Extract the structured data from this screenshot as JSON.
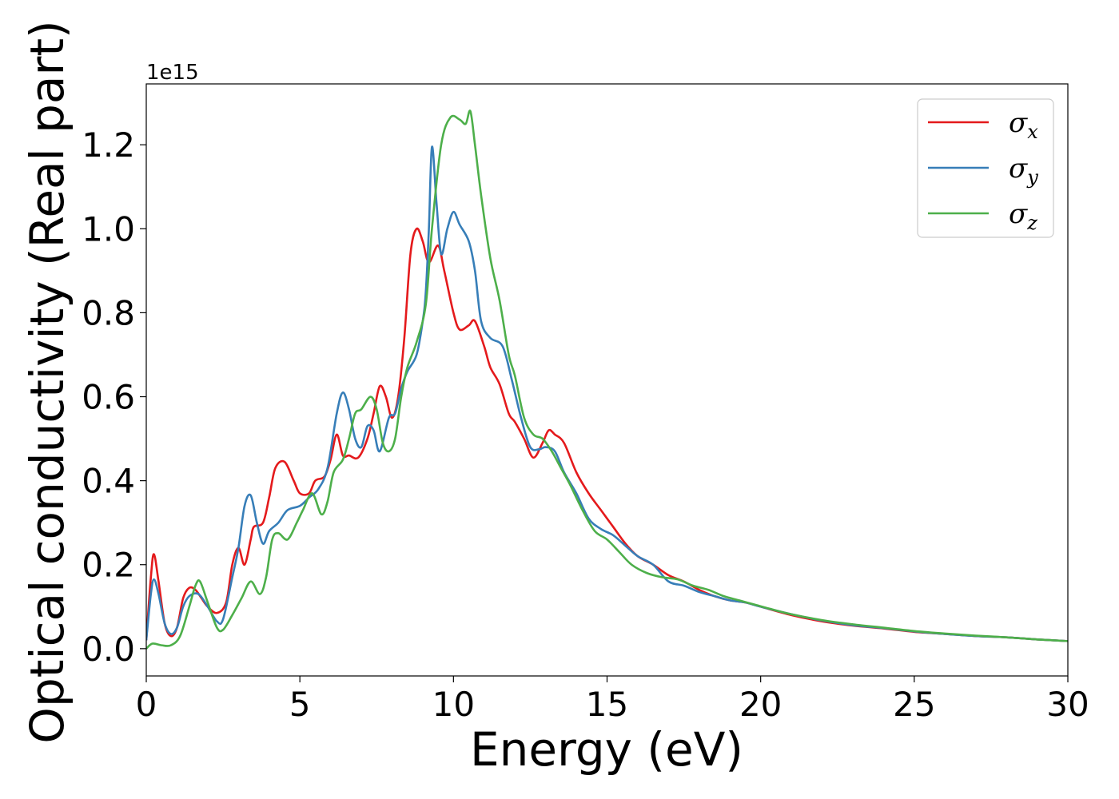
{
  "chart_data": {
    "type": "line",
    "title": "",
    "xlabel": "Energy (eV)",
    "ylabel": "Optical conductivity (Real part)",
    "y_offset_label": "1e15",
    "xlim": [
      0,
      30
    ],
    "ylim": [
      -0.065,
      1.345
    ],
    "x_ticks": [
      0,
      5,
      10,
      15,
      20,
      25,
      30
    ],
    "y_ticks": [
      0.0,
      0.2,
      0.4,
      0.6,
      0.8,
      1.0,
      1.2
    ],
    "x_tick_labels": [
      "0",
      "5",
      "10",
      "15",
      "20",
      "25",
      "30"
    ],
    "y_tick_labels": [
      "0.0",
      "0.2",
      "0.4",
      "0.6",
      "0.8",
      "1.0",
      "1.2"
    ],
    "grid": false,
    "legend_position": "top-right",
    "series": [
      {
        "name": "σx",
        "legend_main": "σ",
        "legend_sub": "x",
        "color": "#e41a1c",
        "points": [
          [
            0,
            0.02
          ],
          [
            0.15,
            0.17
          ],
          [
            0.25,
            0.225
          ],
          [
            0.4,
            0.16
          ],
          [
            0.6,
            0.06
          ],
          [
            0.8,
            0.03
          ],
          [
            1.0,
            0.05
          ],
          [
            1.2,
            0.12
          ],
          [
            1.4,
            0.145
          ],
          [
            1.6,
            0.14
          ],
          [
            1.8,
            0.12
          ],
          [
            2.0,
            0.1
          ],
          [
            2.3,
            0.085
          ],
          [
            2.6,
            0.11
          ],
          [
            2.8,
            0.2
          ],
          [
            3.0,
            0.24
          ],
          [
            3.2,
            0.2
          ],
          [
            3.4,
            0.26
          ],
          [
            3.5,
            0.29
          ],
          [
            3.8,
            0.3
          ],
          [
            4.0,
            0.36
          ],
          [
            4.2,
            0.43
          ],
          [
            4.5,
            0.445
          ],
          [
            4.8,
            0.4
          ],
          [
            5.0,
            0.37
          ],
          [
            5.3,
            0.37
          ],
          [
            5.5,
            0.4
          ],
          [
            5.8,
            0.41
          ],
          [
            6.0,
            0.45
          ],
          [
            6.2,
            0.51
          ],
          [
            6.4,
            0.46
          ],
          [
            6.6,
            0.46
          ],
          [
            6.9,
            0.455
          ],
          [
            7.2,
            0.5
          ],
          [
            7.4,
            0.56
          ],
          [
            7.6,
            0.625
          ],
          [
            7.8,
            0.6
          ],
          [
            8.0,
            0.55
          ],
          [
            8.2,
            0.6
          ],
          [
            8.4,
            0.74
          ],
          [
            8.6,
            0.94
          ],
          [
            8.8,
            1.0
          ],
          [
            9.0,
            0.97
          ],
          [
            9.2,
            0.92
          ],
          [
            9.5,
            0.96
          ],
          [
            9.7,
            0.9
          ],
          [
            10.0,
            0.8
          ],
          [
            10.2,
            0.76
          ],
          [
            10.5,
            0.77
          ],
          [
            10.7,
            0.78
          ],
          [
            11.0,
            0.72
          ],
          [
            11.2,
            0.67
          ],
          [
            11.5,
            0.63
          ],
          [
            11.8,
            0.56
          ],
          [
            12.0,
            0.54
          ],
          [
            12.3,
            0.5
          ],
          [
            12.6,
            0.455
          ],
          [
            12.9,
            0.49
          ],
          [
            13.1,
            0.52
          ],
          [
            13.3,
            0.51
          ],
          [
            13.6,
            0.49
          ],
          [
            14.0,
            0.42
          ],
          [
            14.4,
            0.37
          ],
          [
            14.8,
            0.33
          ],
          [
            15.2,
            0.29
          ],
          [
            15.6,
            0.25
          ],
          [
            16.0,
            0.22
          ],
          [
            16.5,
            0.2
          ],
          [
            17.0,
            0.175
          ],
          [
            17.5,
            0.16
          ],
          [
            18.0,
            0.14
          ],
          [
            18.5,
            0.125
          ],
          [
            19.0,
            0.115
          ],
          [
            19.5,
            0.11
          ],
          [
            20.0,
            0.1
          ],
          [
            21.0,
            0.08
          ],
          [
            22.0,
            0.065
          ],
          [
            23.0,
            0.055
          ],
          [
            24.0,
            0.048
          ],
          [
            25.0,
            0.04
          ],
          [
            26.0,
            0.035
          ],
          [
            27.0,
            0.03
          ],
          [
            28.0,
            0.027
          ],
          [
            29.0,
            0.022
          ],
          [
            30.0,
            0.018
          ]
        ]
      },
      {
        "name": "σy",
        "legend_main": "σ",
        "legend_sub": "y",
        "color": "#377eb8",
        "points": [
          [
            0,
            0.02
          ],
          [
            0.15,
            0.13
          ],
          [
            0.25,
            0.165
          ],
          [
            0.4,
            0.13
          ],
          [
            0.6,
            0.06
          ],
          [
            0.8,
            0.035
          ],
          [
            1.0,
            0.05
          ],
          [
            1.2,
            0.1
          ],
          [
            1.4,
            0.125
          ],
          [
            1.7,
            0.13
          ],
          [
            2.0,
            0.1
          ],
          [
            2.3,
            0.065
          ],
          [
            2.5,
            0.07
          ],
          [
            2.8,
            0.17
          ],
          [
            3.0,
            0.24
          ],
          [
            3.2,
            0.34
          ],
          [
            3.4,
            0.365
          ],
          [
            3.6,
            0.3
          ],
          [
            3.8,
            0.25
          ],
          [
            4.0,
            0.28
          ],
          [
            4.3,
            0.3
          ],
          [
            4.6,
            0.33
          ],
          [
            5.0,
            0.34
          ],
          [
            5.3,
            0.36
          ],
          [
            5.6,
            0.38
          ],
          [
            5.9,
            0.43
          ],
          [
            6.2,
            0.56
          ],
          [
            6.4,
            0.61
          ],
          [
            6.6,
            0.57
          ],
          [
            6.8,
            0.5
          ],
          [
            7.0,
            0.48
          ],
          [
            7.2,
            0.53
          ],
          [
            7.4,
            0.52
          ],
          [
            7.6,
            0.47
          ],
          [
            7.9,
            0.55
          ],
          [
            8.1,
            0.56
          ],
          [
            8.3,
            0.62
          ],
          [
            8.5,
            0.66
          ],
          [
            8.8,
            0.7
          ],
          [
            9.0,
            0.78
          ],
          [
            9.1,
            0.85
          ],
          [
            9.2,
            1.0
          ],
          [
            9.3,
            1.195
          ],
          [
            9.45,
            1.06
          ],
          [
            9.6,
            0.94
          ],
          [
            9.8,
            1.0
          ],
          [
            10.0,
            1.04
          ],
          [
            10.2,
            1.01
          ],
          [
            10.5,
            0.97
          ],
          [
            10.7,
            0.9
          ],
          [
            10.9,
            0.78
          ],
          [
            11.2,
            0.74
          ],
          [
            11.6,
            0.72
          ],
          [
            11.9,
            0.64
          ],
          [
            12.2,
            0.55
          ],
          [
            12.5,
            0.48
          ],
          [
            12.8,
            0.475
          ],
          [
            13.0,
            0.48
          ],
          [
            13.3,
            0.47
          ],
          [
            13.6,
            0.42
          ],
          [
            14.0,
            0.37
          ],
          [
            14.4,
            0.31
          ],
          [
            14.8,
            0.285
          ],
          [
            15.2,
            0.27
          ],
          [
            15.6,
            0.245
          ],
          [
            16.0,
            0.22
          ],
          [
            16.5,
            0.2
          ],
          [
            17.0,
            0.16
          ],
          [
            17.5,
            0.15
          ],
          [
            18.0,
            0.135
          ],
          [
            18.5,
            0.125
          ],
          [
            19.0,
            0.115
          ],
          [
            19.5,
            0.11
          ],
          [
            20.0,
            0.1
          ],
          [
            21.0,
            0.082
          ],
          [
            22.0,
            0.067
          ],
          [
            23.0,
            0.056
          ],
          [
            24.0,
            0.049
          ],
          [
            25.0,
            0.041
          ],
          [
            26.0,
            0.035
          ],
          [
            27.0,
            0.03
          ],
          [
            28.0,
            0.027
          ],
          [
            29.0,
            0.022
          ],
          [
            30.0,
            0.018
          ]
        ]
      },
      {
        "name": "σz",
        "legend_main": "σ",
        "legend_sub": "z",
        "color": "#4daf4a",
        "points": [
          [
            0,
            0.0
          ],
          [
            0.2,
            0.012
          ],
          [
            0.5,
            0.008
          ],
          [
            0.8,
            0.008
          ],
          [
            1.1,
            0.03
          ],
          [
            1.4,
            0.1
          ],
          [
            1.6,
            0.15
          ],
          [
            1.75,
            0.16
          ],
          [
            2.0,
            0.11
          ],
          [
            2.3,
            0.05
          ],
          [
            2.5,
            0.045
          ],
          [
            2.8,
            0.08
          ],
          [
            3.1,
            0.12
          ],
          [
            3.4,
            0.16
          ],
          [
            3.7,
            0.13
          ],
          [
            3.9,
            0.17
          ],
          [
            4.1,
            0.26
          ],
          [
            4.3,
            0.275
          ],
          [
            4.6,
            0.26
          ],
          [
            4.9,
            0.3
          ],
          [
            5.1,
            0.33
          ],
          [
            5.4,
            0.37
          ],
          [
            5.7,
            0.32
          ],
          [
            5.9,
            0.35
          ],
          [
            6.1,
            0.42
          ],
          [
            6.4,
            0.45
          ],
          [
            6.6,
            0.5
          ],
          [
            6.8,
            0.56
          ],
          [
            7.0,
            0.57
          ],
          [
            7.3,
            0.6
          ],
          [
            7.5,
            0.57
          ],
          [
            7.7,
            0.49
          ],
          [
            7.9,
            0.47
          ],
          [
            8.1,
            0.5
          ],
          [
            8.3,
            0.6
          ],
          [
            8.5,
            0.67
          ],
          [
            8.8,
            0.73
          ],
          [
            9.1,
            0.82
          ],
          [
            9.3,
            1.0
          ],
          [
            9.6,
            1.2
          ],
          [
            9.9,
            1.265
          ],
          [
            10.2,
            1.26
          ],
          [
            10.4,
            1.25
          ],
          [
            10.55,
            1.28
          ],
          [
            10.7,
            1.2
          ],
          [
            10.9,
            1.08
          ],
          [
            11.2,
            0.93
          ],
          [
            11.5,
            0.83
          ],
          [
            11.8,
            0.7
          ],
          [
            12.0,
            0.65
          ],
          [
            12.3,
            0.55
          ],
          [
            12.6,
            0.51
          ],
          [
            12.9,
            0.5
          ],
          [
            13.2,
            0.47
          ],
          [
            13.5,
            0.43
          ],
          [
            13.8,
            0.39
          ],
          [
            14.2,
            0.33
          ],
          [
            14.6,
            0.28
          ],
          [
            15.0,
            0.26
          ],
          [
            15.4,
            0.23
          ],
          [
            15.8,
            0.2
          ],
          [
            16.3,
            0.18
          ],
          [
            16.8,
            0.17
          ],
          [
            17.3,
            0.165
          ],
          [
            17.8,
            0.15
          ],
          [
            18.3,
            0.14
          ],
          [
            18.8,
            0.125
          ],
          [
            19.3,
            0.115
          ],
          [
            19.8,
            0.105
          ],
          [
            20.3,
            0.095
          ],
          [
            21.0,
            0.082
          ],
          [
            22.0,
            0.068
          ],
          [
            23.0,
            0.058
          ],
          [
            24.0,
            0.05
          ],
          [
            25.0,
            0.042
          ],
          [
            26.0,
            0.036
          ],
          [
            27.0,
            0.031
          ],
          [
            28.0,
            0.027
          ],
          [
            29.0,
            0.022
          ],
          [
            30.0,
            0.018
          ]
        ]
      }
    ]
  }
}
